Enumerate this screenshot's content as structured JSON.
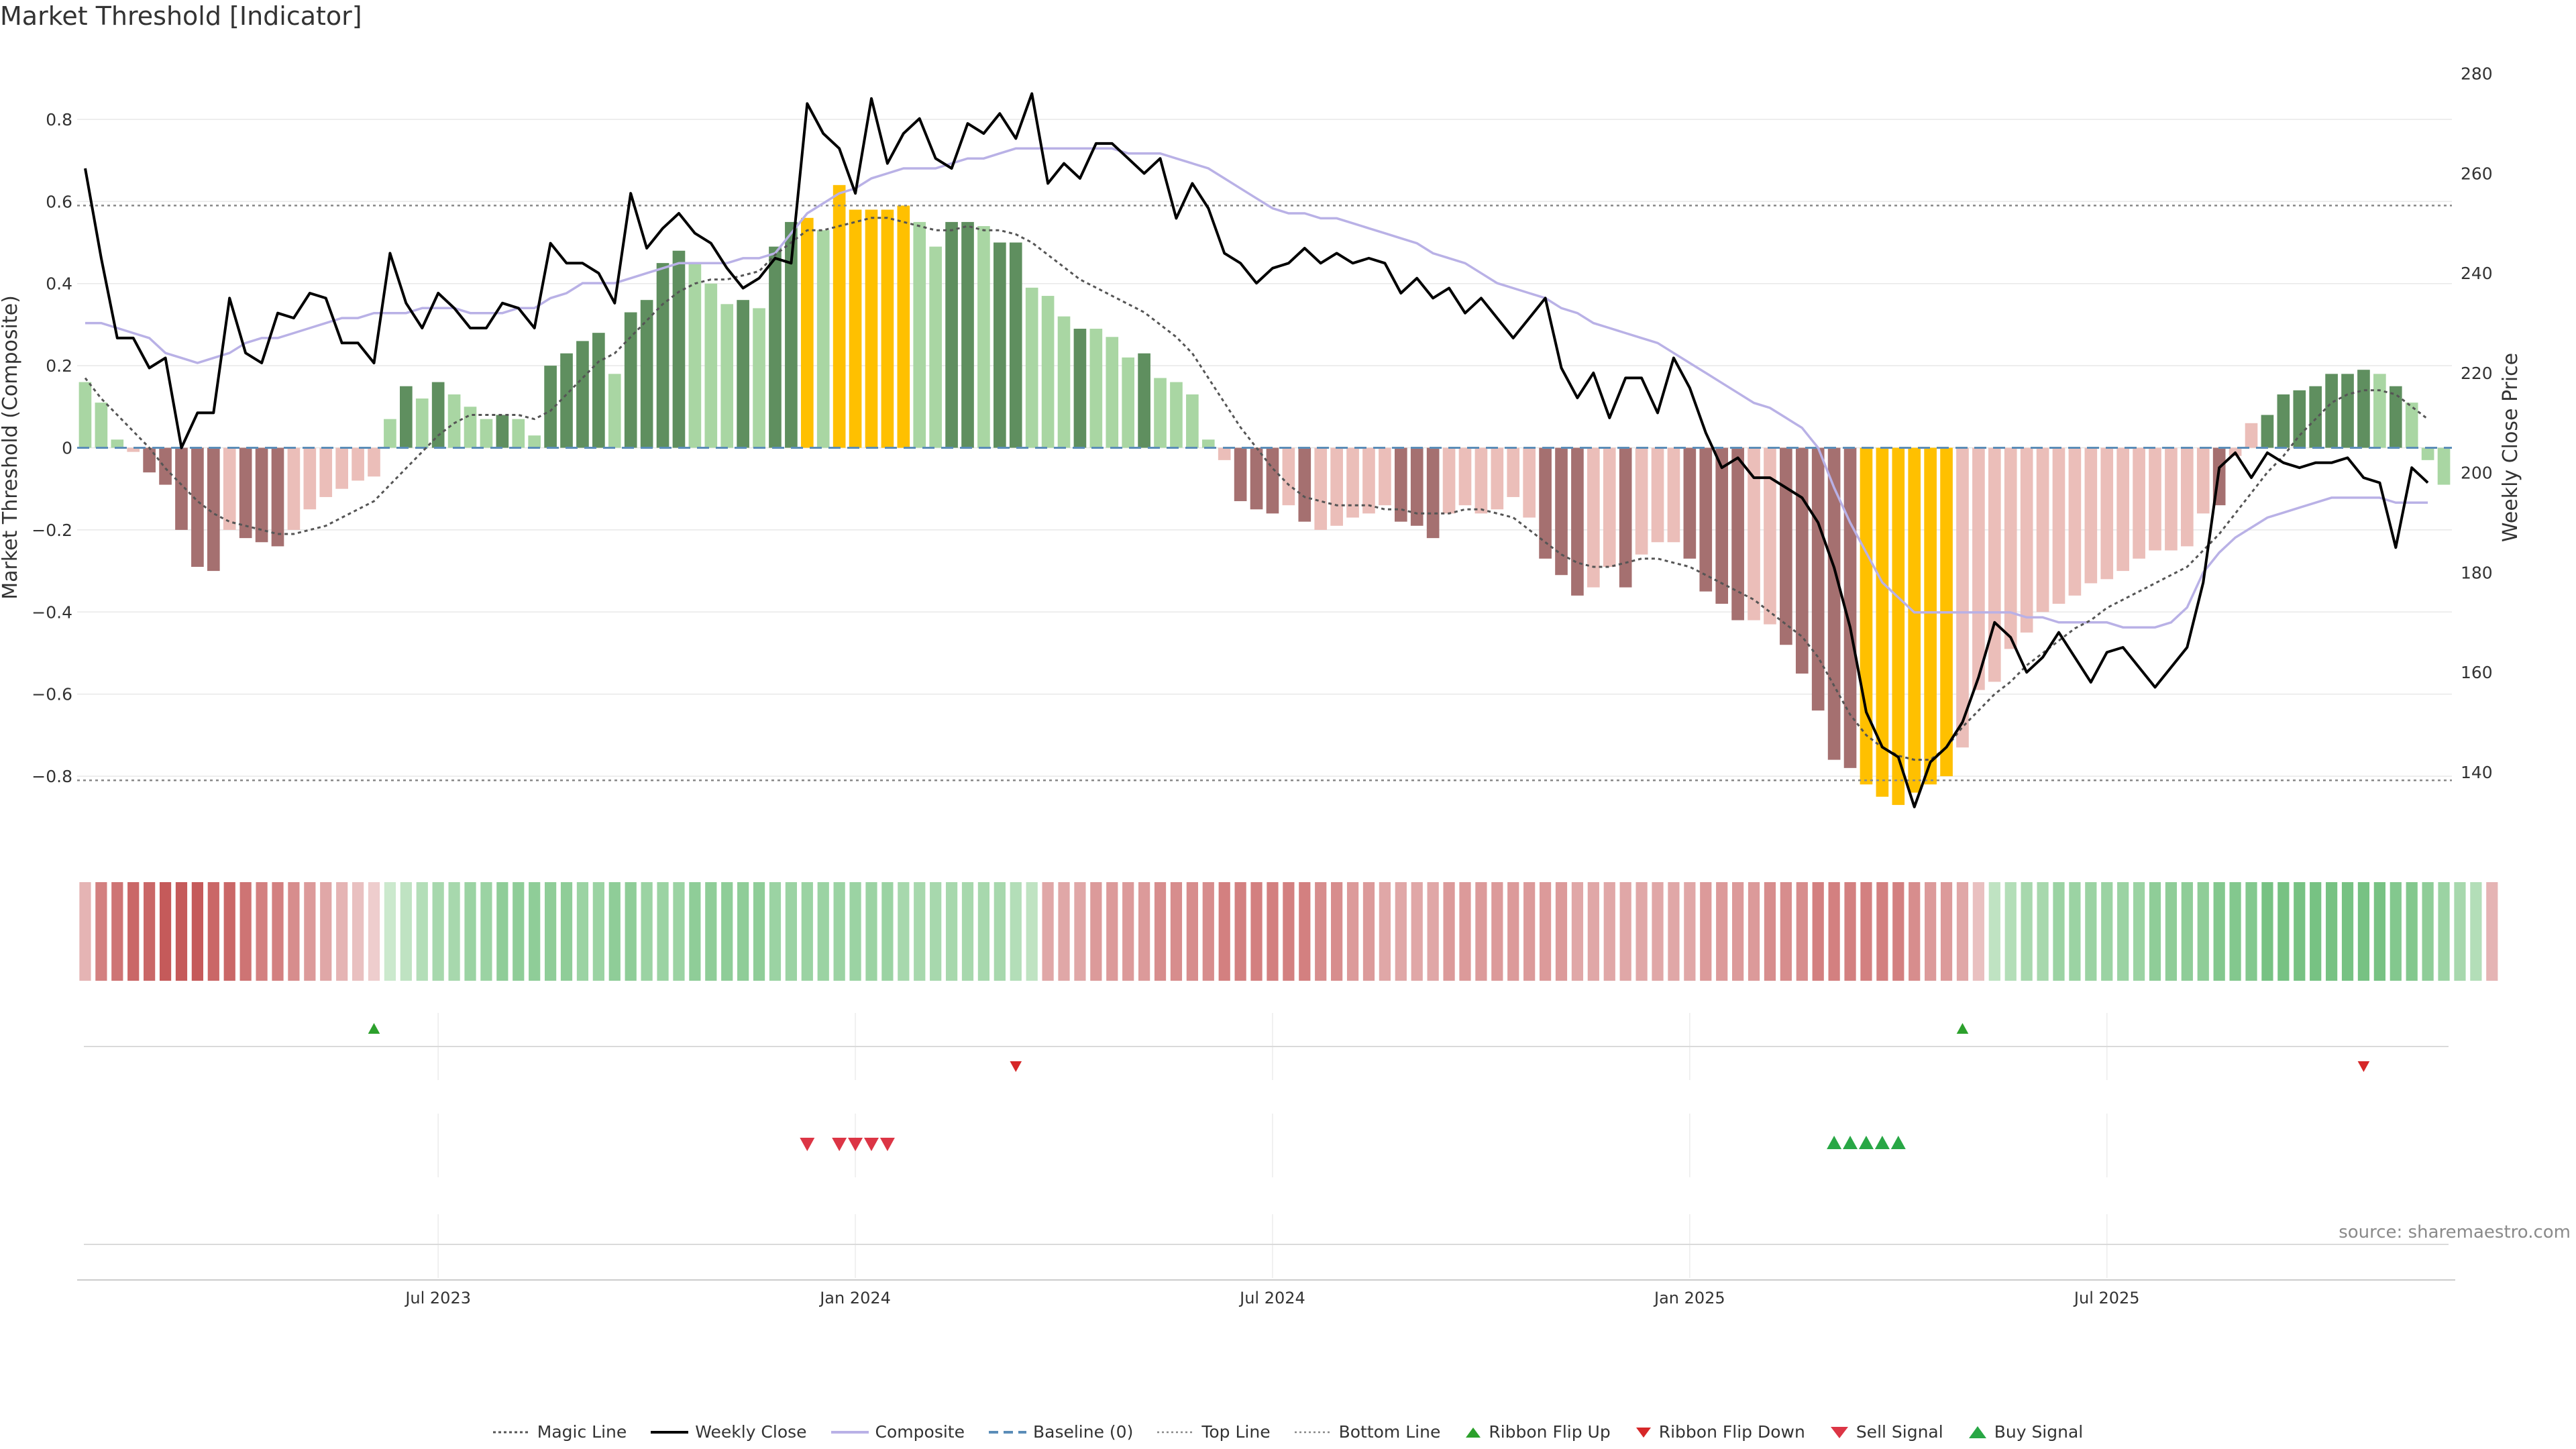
{
  "title": "Market Threshold [Indicator]",
  "source": "source: sharemaestro.com",
  "colors": {
    "background": "#ffffff",
    "bar_dark_green": "#5f8f5f",
    "bar_light_green": "#a9d6a3",
    "bar_dark_red": "#a57070",
    "bar_light_red": "#ebbeb9",
    "bar_extreme": "#ffc000",
    "weekly_close": "#000000",
    "composite": "#b9b1e6",
    "magic_line": "#555555",
    "baseline": "#5b8db8",
    "threshold_lines": "#888888",
    "buy_marker": "#2ca02c",
    "sell_marker": "#d62728"
  },
  "chart_data": {
    "type": "bar",
    "xaxis": {
      "ticks": [
        "Jul 2023",
        "Jan 2024",
        "Jul 2024",
        "Jan 2025",
        "Jul 2025"
      ],
      "tick_weeks": [
        22,
        48,
        74,
        100,
        126
      ]
    },
    "ylabel_left": "Market Threshold (Composite)",
    "ylabel_right": "Weekly Close Price",
    "ylim_left": [
      -0.96,
      0.96
    ],
    "ylim_right": [
      126,
      284
    ],
    "yticks_left": [
      "0.8",
      "0.6",
      "0.4",
      "0.2",
      "0",
      "−0.2",
      "−0.4",
      "−0.6",
      "−0.8"
    ],
    "yticks_left_values": [
      0.8,
      0.6,
      0.4,
      0.2,
      0,
      -0.2,
      -0.4,
      -0.6,
      -0.8
    ],
    "yticks_right": [
      "280",
      "260",
      "240",
      "220",
      "200",
      "180",
      "160",
      "140"
    ],
    "yticks_right_values": [
      280,
      260,
      240,
      220,
      200,
      180,
      160,
      140
    ],
    "top_line": 0.59,
    "bottom_line": -0.81,
    "baseline": 0,
    "composite_bars": [
      0.16,
      0.11,
      0.02,
      -0.01,
      -0.06,
      -0.09,
      -0.2,
      -0.29,
      -0.3,
      -0.2,
      -0.22,
      -0.23,
      -0.24,
      -0.2,
      -0.15,
      -0.12,
      -0.1,
      -0.08,
      -0.07,
      0.07,
      0.15,
      0.12,
      0.16,
      0.13,
      0.1,
      0.07,
      0.08,
      0.07,
      0.03,
      0.2,
      0.23,
      0.26,
      0.28,
      0.18,
      0.33,
      0.36,
      0.45,
      0.48,
      0.45,
      0.4,
      0.35,
      0.36,
      0.34,
      0.49,
      0.55,
      0.56,
      0.53,
      0.64,
      0.58,
      0.58,
      0.58,
      0.59,
      0.55,
      0.49,
      0.55,
      0.55,
      0.54,
      0.5,
      0.5,
      0.39,
      0.37,
      0.32,
      0.29,
      0.29,
      0.27,
      0.22,
      0.23,
      0.17,
      0.16,
      0.13,
      0.02,
      -0.03,
      -0.13,
      -0.15,
      -0.16,
      -0.14,
      -0.18,
      -0.2,
      -0.19,
      -0.17,
      -0.16,
      -0.14,
      -0.18,
      -0.19,
      -0.22,
      -0.16,
      -0.14,
      -0.16,
      -0.15,
      -0.12,
      -0.17,
      -0.27,
      -0.31,
      -0.36,
      -0.34,
      -0.29,
      -0.34,
      -0.26,
      -0.23,
      -0.23,
      -0.27,
      -0.35,
      -0.38,
      -0.42,
      -0.42,
      -0.43,
      -0.48,
      -0.55,
      -0.64,
      -0.76,
      -0.78,
      -0.82,
      -0.85,
      -0.87,
      -0.84,
      -0.82,
      -0.8,
      -0.73,
      -0.59,
      -0.57,
      -0.49,
      -0.45,
      -0.4,
      -0.38,
      -0.36,
      -0.33,
      -0.32,
      -0.3,
      -0.27,
      -0.25,
      -0.25,
      -0.24,
      -0.16,
      -0.14,
      -0.02,
      0.06,
      0.08,
      0.13,
      0.14,
      0.15,
      0.18,
      0.18,
      0.19,
      0.18,
      0.15,
      0.11,
      -0.03,
      -0.09
    ],
    "bar_classes": [
      "lg",
      "lg",
      "lg",
      "lr",
      "dr",
      "dr",
      "dr",
      "dr",
      "dr",
      "lr",
      "dr",
      "dr",
      "dr",
      "lr",
      "lr",
      "lr",
      "lr",
      "lr",
      "lr",
      "lg",
      "dg",
      "lg",
      "dg",
      "lg",
      "lg",
      "lg",
      "dg",
      "lg",
      "lg",
      "dg",
      "dg",
      "dg",
      "dg",
      "lg",
      "dg",
      "dg",
      "dg",
      "dg",
      "lg",
      "lg",
      "lg",
      "dg",
      "lg",
      "dg",
      "dg",
      "y",
      "lg",
      "y",
      "y",
      "y",
      "y",
      "y",
      "lg",
      "lg",
      "dg",
      "dg",
      "lg",
      "dg",
      "dg",
      "lg",
      "lg",
      "lg",
      "dg",
      "lg",
      "lg",
      "lg",
      "dg",
      "lg",
      "lg",
      "lg",
      "lg",
      "lr",
      "dr",
      "dr",
      "dr",
      "lr",
      "dr",
      "lr",
      "lr",
      "lr",
      "lr",
      "lr",
      "dr",
      "dr",
      "dr",
      "lr",
      "lr",
      "lr",
      "lr",
      "lr",
      "lr",
      "dr",
      "dr",
      "dr",
      "lr",
      "lr",
      "dr",
      "lr",
      "lr",
      "lr",
      "dr",
      "dr",
      "dr",
      "dr",
      "lr",
      "lr",
      "dr",
      "dr",
      "dr",
      "dr",
      "dr",
      "y",
      "y",
      "y",
      "y",
      "y",
      "y",
      "lr",
      "lr",
      "lr",
      "lr",
      "lr",
      "lr",
      "lr",
      "lr",
      "lr",
      "lr",
      "lr",
      "lr",
      "lr",
      "lr",
      "lr",
      "lr",
      "dr",
      "lr",
      "lr",
      "dg",
      "dg",
      "dg",
      "dg",
      "dg",
      "dg",
      "dg",
      "lg",
      "dg",
      "lg",
      "lg",
      "lg",
      "lr",
      "dr"
    ],
    "weekly_close": [
      261,
      243,
      227,
      227,
      221,
      223,
      205,
      212,
      212,
      235,
      224,
      222,
      232,
      231,
      236,
      235,
      226,
      226,
      222,
      244,
      234,
      229,
      236,
      233,
      229,
      229,
      234,
      233,
      229,
      246,
      242,
      242,
      240,
      234,
      256,
      245,
      249,
      252,
      248,
      246,
      241,
      237,
      239,
      243,
      242,
      274,
      268,
      265,
      256,
      275,
      262,
      268,
      271,
      263,
      261,
      270,
      268,
      272,
      267,
      276,
      258,
      262,
      259,
      266,
      266,
      263,
      260,
      263,
      251,
      258,
      253,
      244,
      242,
      238,
      241,
      242,
      245,
      242,
      244,
      242,
      243,
      242,
      236,
      239,
      235,
      237,
      232,
      235,
      231,
      227,
      231,
      235,
      221,
      215,
      220,
      211,
      219,
      219,
      212,
      223,
      217,
      208,
      201,
      203,
      199,
      199,
      197,
      195,
      190,
      181,
      169,
      152,
      145,
      143,
      133,
      142,
      145,
      150,
      159,
      170,
      167,
      160,
      163,
      168,
      163,
      158,
      164,
      165,
      161,
      157,
      161,
      165,
      178,
      201,
      204,
      199,
      204,
      202,
      201,
      202,
      202,
      203,
      199,
      198,
      185,
      201,
      198
    ],
    "composite_line": [
      230,
      230,
      229,
      228,
      227,
      224,
      223,
      222,
      223,
      224,
      226,
      227,
      227,
      228,
      229,
      230,
      231,
      231,
      232,
      232,
      232,
      233,
      233,
      233,
      232,
      232,
      232,
      233,
      233,
      235,
      236,
      238,
      238,
      238,
      239,
      240,
      241,
      242,
      242,
      242,
      242,
      243,
      243,
      244,
      248,
      252,
      254,
      256,
      257,
      259,
      260,
      261,
      261,
      261,
      262,
      263,
      263,
      264,
      265,
      265,
      265,
      265,
      265,
      265,
      265,
      264,
      264,
      264,
      263,
      262,
      261,
      259,
      257,
      255,
      253,
      252,
      252,
      251,
      251,
      250,
      249,
      248,
      247,
      246,
      244,
      243,
      242,
      240,
      238,
      237,
      236,
      235,
      233,
      232,
      230,
      229,
      228,
      227,
      226,
      224,
      222,
      220,
      218,
      216,
      214,
      213,
      211,
      209,
      205,
      197,
      190,
      184,
      178,
      175,
      172,
      172,
      172,
      172,
      172,
      172,
      172,
      171,
      171,
      170,
      170,
      170,
      170,
      169,
      169,
      169,
      170,
      173,
      180,
      184,
      187,
      189,
      191,
      192,
      193,
      194,
      195,
      195,
      195,
      195,
      194,
      194,
      194
    ],
    "magic_line": [
      0.17,
      0.12,
      0.08,
      0.04,
      0.0,
      -0.05,
      -0.09,
      -0.13,
      -0.16,
      -0.18,
      -0.19,
      -0.2,
      -0.21,
      -0.21,
      -0.2,
      -0.19,
      -0.17,
      -0.15,
      -0.13,
      -0.09,
      -0.05,
      -0.01,
      0.03,
      0.06,
      0.08,
      0.08,
      0.08,
      0.08,
      0.07,
      0.09,
      0.13,
      0.17,
      0.21,
      0.23,
      0.27,
      0.31,
      0.35,
      0.38,
      0.4,
      0.41,
      0.41,
      0.42,
      0.43,
      0.47,
      0.5,
      0.53,
      0.53,
      0.54,
      0.55,
      0.56,
      0.56,
      0.55,
      0.54,
      0.53,
      0.53,
      0.54,
      0.53,
      0.53,
      0.52,
      0.5,
      0.47,
      0.44,
      0.41,
      0.39,
      0.37,
      0.35,
      0.33,
      0.3,
      0.27,
      0.23,
      0.17,
      0.11,
      0.05,
      0.0,
      -0.05,
      -0.09,
      -0.12,
      -0.13,
      -0.14,
      -0.14,
      -0.14,
      -0.15,
      -0.15,
      -0.16,
      -0.16,
      -0.16,
      -0.15,
      -0.15,
      -0.16,
      -0.17,
      -0.2,
      -0.23,
      -0.26,
      -0.28,
      -0.29,
      -0.29,
      -0.28,
      -0.27,
      -0.27,
      -0.28,
      -0.29,
      -0.31,
      -0.33,
      -0.35,
      -0.37,
      -0.4,
      -0.43,
      -0.46,
      -0.51,
      -0.58,
      -0.65,
      -0.7,
      -0.73,
      -0.75,
      -0.76,
      -0.76,
      -0.73,
      -0.68,
      -0.64,
      -0.6,
      -0.57,
      -0.53,
      -0.5,
      -0.47,
      -0.44,
      -0.42,
      -0.39,
      -0.37,
      -0.35,
      -0.33,
      -0.31,
      -0.29,
      -0.25,
      -0.21,
      -0.16,
      -0.11,
      -0.06,
      -0.02,
      0.03,
      0.07,
      0.11,
      0.13,
      0.14,
      0.14,
      0.13,
      0.1,
      0.07
    ],
    "ribbon_strength": [
      -0.3,
      -0.7,
      -0.8,
      -0.9,
      -0.9,
      -1.0,
      -1.0,
      -1.0,
      -0.9,
      -0.9,
      -0.8,
      -0.7,
      -0.7,
      -0.6,
      -0.5,
      -0.4,
      -0.3,
      -0.2,
      -0.1,
      0.1,
      0.2,
      0.3,
      0.4,
      0.4,
      0.5,
      0.5,
      0.6,
      0.6,
      0.6,
      0.6,
      0.6,
      0.5,
      0.5,
      0.6,
      0.6,
      0.5,
      0.5,
      0.5,
      0.6,
      0.6,
      0.6,
      0.6,
      0.6,
      0.5,
      0.5,
      0.5,
      0.5,
      0.5,
      0.5,
      0.5,
      0.5,
      0.4,
      0.4,
      0.4,
      0.4,
      0.4,
      0.4,
      0.4,
      0.3,
      0.2,
      -0.4,
      -0.4,
      -0.4,
      -0.5,
      -0.5,
      -0.5,
      -0.5,
      -0.6,
      -0.6,
      -0.6,
      -0.6,
      -0.7,
      -0.7,
      -0.7,
      -0.7,
      -0.7,
      -0.7,
      -0.6,
      -0.6,
      -0.5,
      -0.5,
      -0.4,
      -0.4,
      -0.4,
      -0.4,
      -0.5,
      -0.5,
      -0.5,
      -0.5,
      -0.5,
      -0.5,
      -0.5,
      -0.5,
      -0.4,
      -0.4,
      -0.4,
      -0.4,
      -0.4,
      -0.4,
      -0.4,
      -0.4,
      -0.5,
      -0.5,
      -0.5,
      -0.5,
      -0.6,
      -0.6,
      -0.6,
      -0.7,
      -0.7,
      -0.7,
      -0.7,
      -0.7,
      -0.7,
      -0.6,
      -0.5,
      -0.5,
      -0.4,
      -0.2,
      0.2,
      0.3,
      0.4,
      0.4,
      0.5,
      0.5,
      0.5,
      0.5,
      0.5,
      0.5,
      0.6,
      0.6,
      0.6,
      0.6,
      0.7,
      0.7,
      0.7,
      0.8,
      0.8,
      0.8,
      0.8,
      0.8,
      0.8,
      0.8,
      0.8,
      0.7,
      0.7,
      0.6,
      0.5,
      0.4,
      0.3,
      -0.3
    ],
    "ribbon_flip_up_weeks": [
      18,
      117
    ],
    "ribbon_flip_down_weeks": [
      58,
      142
    ],
    "sell_signal_weeks": [
      45,
      47,
      48,
      49,
      50
    ],
    "buy_signal_weeks": [
      109,
      110,
      111,
      112,
      113
    ],
    "legend": [
      "Magic Line",
      "Weekly Close",
      "Composite",
      "Baseline (0)",
      "Top Line",
      "Bottom Line",
      "Ribbon Flip Up",
      "Ribbon Flip Down",
      "Sell Signal",
      "Buy Signal"
    ]
  }
}
